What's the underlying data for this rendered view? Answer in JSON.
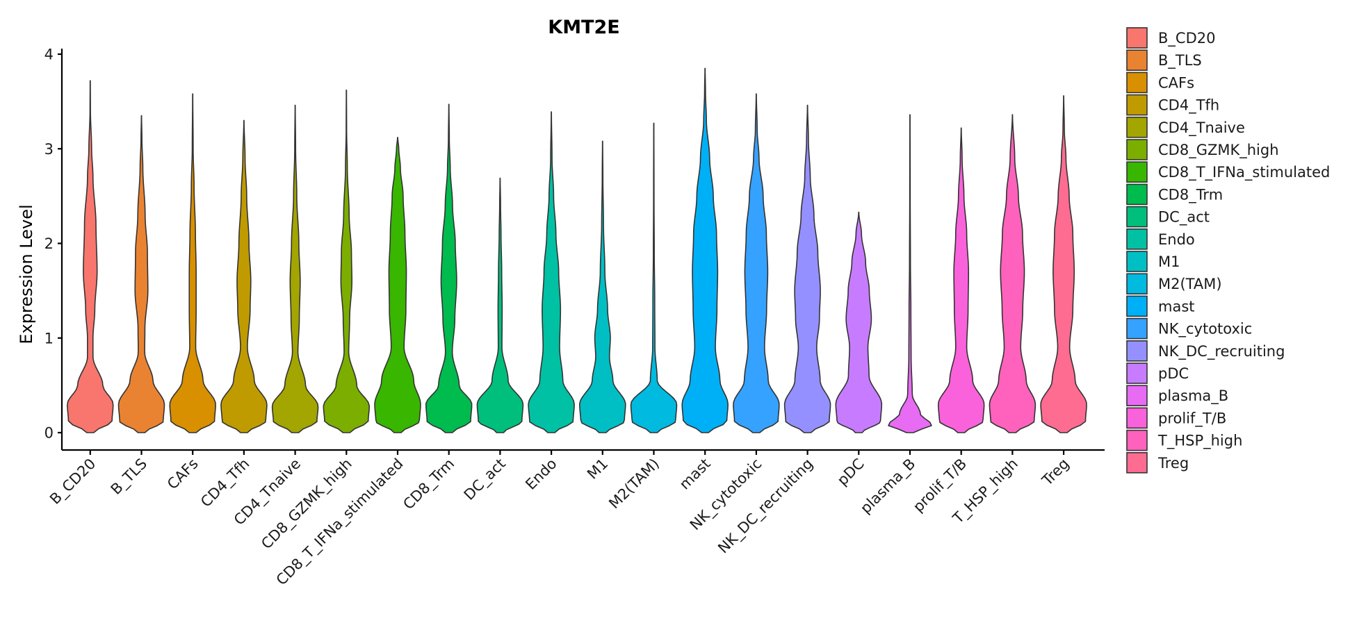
{
  "chart_data": {
    "type": "violin",
    "title": "KMT2E",
    "xlabel": "",
    "ylabel": "Expression Level",
    "ylim": [
      0,
      4.1
    ],
    "yticks": [
      0,
      1,
      2,
      3,
      4
    ],
    "legend_position": "right",
    "categories": [
      "B_CD20",
      "B_TLS",
      "CAFs",
      "CD4_Tfh",
      "CD4_Tnaive",
      "CD8_GZMK_high",
      "CD8_T_IFNa_stimulated",
      "CD8_Trm",
      "DC_act",
      "Endo",
      "M1",
      "M2(TAM)",
      "mast",
      "NK_cytotoxic",
      "NK_DC_recruiting",
      "pDC",
      "plasma_B",
      "prolif_T/B",
      "T_HSP_high",
      "Treg"
    ],
    "colors": [
      "#F8766D",
      "#EA8331",
      "#D89000",
      "#C09B00",
      "#A3A500",
      "#7CAE00",
      "#39B600",
      "#00BB4E",
      "#00BF7D",
      "#00C1A3",
      "#00BFC4",
      "#00BAE0",
      "#00B0F6",
      "#35A2FF",
      "#9590FF",
      "#C77CFF",
      "#E76BF3",
      "#FA62DB",
      "#FF62BC",
      "#FF6C91"
    ],
    "max_values": [
      3.72,
      3.35,
      3.58,
      3.3,
      3.46,
      3.62,
      3.12,
      3.47,
      2.69,
      3.39,
      3.08,
      3.27,
      3.85,
      3.58,
      3.46,
      2.33,
      3.36,
      3.22,
      3.36,
      3.56
    ],
    "density_profiles": [
      [
        [
          0,
          0.15
        ],
        [
          0.12,
          0.95
        ],
        [
          0.3,
          1.0
        ],
        [
          0.5,
          0.55
        ],
        [
          0.8,
          0.12
        ],
        [
          1.0,
          0.12
        ],
        [
          1.3,
          0.2
        ],
        [
          1.7,
          0.3
        ],
        [
          2.2,
          0.25
        ],
        [
          2.7,
          0.12
        ],
        [
          3.0,
          0.06
        ],
        [
          3.4,
          0.01
        ],
        [
          3.72,
          0.004
        ]
      ],
      [
        [
          0,
          0.15
        ],
        [
          0.12,
          0.95
        ],
        [
          0.3,
          1.0
        ],
        [
          0.55,
          0.5
        ],
        [
          0.85,
          0.14
        ],
        [
          1.1,
          0.15
        ],
        [
          1.5,
          0.28
        ],
        [
          1.9,
          0.26
        ],
        [
          2.3,
          0.16
        ],
        [
          2.8,
          0.06
        ],
        [
          3.1,
          0.02
        ],
        [
          3.35,
          0.004
        ]
      ],
      [
        [
          0,
          0.15
        ],
        [
          0.12,
          0.95
        ],
        [
          0.3,
          1.0
        ],
        [
          0.55,
          0.45
        ],
        [
          0.9,
          0.13
        ],
        [
          1.3,
          0.15
        ],
        [
          1.7,
          0.15
        ],
        [
          2.1,
          0.12
        ],
        [
          2.6,
          0.06
        ],
        [
          3.0,
          0.02
        ],
        [
          3.58,
          0.004
        ]
      ],
      [
        [
          0,
          0.15
        ],
        [
          0.12,
          0.95
        ],
        [
          0.3,
          1.0
        ],
        [
          0.55,
          0.45
        ],
        [
          0.9,
          0.15
        ],
        [
          1.3,
          0.27
        ],
        [
          1.6,
          0.3
        ],
        [
          2.0,
          0.22
        ],
        [
          2.5,
          0.12
        ],
        [
          2.9,
          0.05
        ],
        [
          3.3,
          0.004
        ]
      ],
      [
        [
          0,
          0.15
        ],
        [
          0.12,
          0.95
        ],
        [
          0.28,
          1.0
        ],
        [
          0.5,
          0.45
        ],
        [
          0.85,
          0.12
        ],
        [
          1.2,
          0.18
        ],
        [
          1.6,
          0.22
        ],
        [
          2.0,
          0.16
        ],
        [
          2.5,
          0.07
        ],
        [
          3.0,
          0.02
        ],
        [
          3.46,
          0.004
        ]
      ],
      [
        [
          0,
          0.15
        ],
        [
          0.12,
          0.95
        ],
        [
          0.28,
          1.0
        ],
        [
          0.5,
          0.45
        ],
        [
          0.85,
          0.1
        ],
        [
          1.2,
          0.14
        ],
        [
          1.6,
          0.24
        ],
        [
          1.9,
          0.22
        ],
        [
          2.3,
          0.12
        ],
        [
          2.8,
          0.04
        ],
        [
          3.2,
          0.01
        ],
        [
          3.62,
          0.004
        ]
      ],
      [
        [
          0,
          0.15
        ],
        [
          0.12,
          0.95
        ],
        [
          0.3,
          1.0
        ],
        [
          0.55,
          0.7
        ],
        [
          0.9,
          0.28
        ],
        [
          1.3,
          0.36
        ],
        [
          1.7,
          0.38
        ],
        [
          2.1,
          0.32
        ],
        [
          2.5,
          0.24
        ],
        [
          2.8,
          0.12
        ],
        [
          3.0,
          0.05
        ],
        [
          3.12,
          0.004
        ]
      ],
      [
        [
          0,
          0.15
        ],
        [
          0.12,
          0.95
        ],
        [
          0.3,
          1.0
        ],
        [
          0.5,
          0.45
        ],
        [
          0.85,
          0.15
        ],
        [
          1.2,
          0.26
        ],
        [
          1.6,
          0.34
        ],
        [
          2.0,
          0.28
        ],
        [
          2.4,
          0.16
        ],
        [
          2.8,
          0.06
        ],
        [
          3.1,
          0.02
        ],
        [
          3.47,
          0.004
        ]
      ],
      [
        [
          0,
          0.15
        ],
        [
          0.12,
          0.95
        ],
        [
          0.3,
          1.0
        ],
        [
          0.55,
          0.35
        ],
        [
          0.9,
          0.08
        ],
        [
          1.3,
          0.09
        ],
        [
          1.7,
          0.07
        ],
        [
          2.1,
          0.04
        ],
        [
          2.4,
          0.02
        ],
        [
          2.69,
          0.004
        ]
      ],
      [
        [
          0,
          0.15
        ],
        [
          0.12,
          0.95
        ],
        [
          0.3,
          1.0
        ],
        [
          0.55,
          0.5
        ],
        [
          0.9,
          0.36
        ],
        [
          1.3,
          0.4
        ],
        [
          1.7,
          0.32
        ],
        [
          2.1,
          0.2
        ],
        [
          2.5,
          0.1
        ],
        [
          2.9,
          0.03
        ],
        [
          3.39,
          0.004
        ]
      ],
      [
        [
          0,
          0.15
        ],
        [
          0.12,
          0.95
        ],
        [
          0.3,
          1.0
        ],
        [
          0.55,
          0.45
        ],
        [
          0.8,
          0.3
        ],
        [
          1.0,
          0.34
        ],
        [
          1.3,
          0.22
        ],
        [
          1.7,
          0.1
        ],
        [
          2.2,
          0.04
        ],
        [
          2.7,
          0.015
        ],
        [
          3.08,
          0.004
        ]
      ],
      [
        [
          0,
          0.15
        ],
        [
          0.12,
          0.95
        ],
        [
          0.3,
          1.0
        ],
        [
          0.55,
          0.15
        ],
        [
          0.9,
          0.05
        ],
        [
          1.4,
          0.04
        ],
        [
          1.9,
          0.02
        ],
        [
          2.5,
          0.01
        ],
        [
          3.27,
          0.004
        ]
      ],
      [
        [
          0,
          0.15
        ],
        [
          0.12,
          0.95
        ],
        [
          0.3,
          1.0
        ],
        [
          0.55,
          0.65
        ],
        [
          0.9,
          0.45
        ],
        [
          1.3,
          0.52
        ],
        [
          1.7,
          0.55
        ],
        [
          2.1,
          0.5
        ],
        [
          2.5,
          0.36
        ],
        [
          2.9,
          0.2
        ],
        [
          3.3,
          0.06
        ],
        [
          3.6,
          0.02
        ],
        [
          3.85,
          0.004
        ]
      ],
      [
        [
          0,
          0.15
        ],
        [
          0.12,
          0.95
        ],
        [
          0.3,
          1.0
        ],
        [
          0.55,
          0.52
        ],
        [
          0.9,
          0.36
        ],
        [
          1.3,
          0.45
        ],
        [
          1.7,
          0.5
        ],
        [
          2.1,
          0.44
        ],
        [
          2.5,
          0.3
        ],
        [
          2.9,
          0.12
        ],
        [
          3.2,
          0.04
        ],
        [
          3.58,
          0.004
        ]
      ],
      [
        [
          0,
          0.15
        ],
        [
          0.12,
          0.95
        ],
        [
          0.3,
          1.0
        ],
        [
          0.55,
          0.55
        ],
        [
          0.9,
          0.4
        ],
        [
          1.2,
          0.52
        ],
        [
          1.5,
          0.56
        ],
        [
          1.9,
          0.45
        ],
        [
          2.3,
          0.28
        ],
        [
          2.7,
          0.12
        ],
        [
          3.1,
          0.04
        ],
        [
          3.46,
          0.004
        ]
      ],
      [
        [
          0,
          0.15
        ],
        [
          0.12,
          0.95
        ],
        [
          0.3,
          1.0
        ],
        [
          0.6,
          0.45
        ],
        [
          0.9,
          0.4
        ],
        [
          1.2,
          0.55
        ],
        [
          1.5,
          0.46
        ],
        [
          1.8,
          0.3
        ],
        [
          2.1,
          0.12
        ],
        [
          2.33,
          0.004
        ]
      ],
      [
        [
          0,
          0.15
        ],
        [
          0.08,
          0.95
        ],
        [
          0.2,
          0.45
        ],
        [
          0.4,
          0.1
        ],
        [
          0.8,
          0.05
        ],
        [
          1.3,
          0.04
        ],
        [
          1.8,
          0.02
        ],
        [
          2.5,
          0.01
        ],
        [
          3.36,
          0.004
        ]
      ],
      [
        [
          0,
          0.15
        ],
        [
          0.12,
          0.95
        ],
        [
          0.3,
          1.0
        ],
        [
          0.55,
          0.5
        ],
        [
          0.9,
          0.24
        ],
        [
          1.3,
          0.3
        ],
        [
          1.7,
          0.32
        ],
        [
          2.1,
          0.24
        ],
        [
          2.5,
          0.12
        ],
        [
          2.9,
          0.04
        ],
        [
          3.22,
          0.004
        ]
      ],
      [
        [
          0,
          0.15
        ],
        [
          0.12,
          0.95
        ],
        [
          0.3,
          1.0
        ],
        [
          0.55,
          0.6
        ],
        [
          0.9,
          0.36
        ],
        [
          1.3,
          0.45
        ],
        [
          1.7,
          0.52
        ],
        [
          2.1,
          0.44
        ],
        [
          2.5,
          0.26
        ],
        [
          2.9,
          0.1
        ],
        [
          3.36,
          0.004
        ]
      ],
      [
        [
          0,
          0.15
        ],
        [
          0.12,
          0.95
        ],
        [
          0.3,
          1.0
        ],
        [
          0.55,
          0.5
        ],
        [
          0.9,
          0.26
        ],
        [
          1.3,
          0.4
        ],
        [
          1.7,
          0.46
        ],
        [
          2.1,
          0.4
        ],
        [
          2.5,
          0.24
        ],
        [
          2.9,
          0.1
        ],
        [
          3.2,
          0.03
        ],
        [
          3.56,
          0.004
        ]
      ]
    ]
  }
}
